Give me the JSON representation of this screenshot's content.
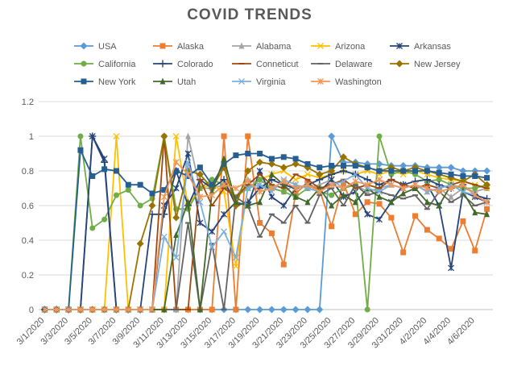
{
  "chart_data": {
    "type": "line",
    "title": "COVID TRENDS",
    "categories": [
      "3/1/2020",
      null,
      "3/3/2020",
      null,
      "3/5/2020",
      null,
      "3/7/2020",
      null,
      "3/9/2020",
      null,
      "3/11/2020",
      null,
      "3/13/2020",
      null,
      "3/15/2020",
      null,
      "3/17/2020",
      null,
      "3/19/2020",
      null,
      "3/21/2020",
      null,
      "3/23/2020",
      null,
      "3/25/2020",
      null,
      "3/27/2020",
      null,
      "3/29/2020",
      null,
      "3/31/2020",
      null,
      "4/2/2020",
      null,
      "4/4/2020",
      null,
      "4/6/2020",
      null
    ],
    "ylim": [
      0,
      1.2
    ],
    "yticks": [
      0,
      0.2,
      0.4,
      0.6,
      0.8,
      1,
      1.2
    ],
    "grid": true,
    "series": [
      {
        "name": "USA",
        "color": "#5b9bd5",
        "marker": "diamond",
        "values": [
          0,
          0,
          0,
          0,
          0,
          0,
          0,
          0,
          0,
          0,
          0,
          0,
          0,
          0,
          0,
          0,
          0,
          0,
          0,
          0,
          0,
          0,
          0,
          0,
          1.0,
          0.85,
          0.85,
          0.84,
          0.84,
          0.83,
          0.83,
          0.83,
          0.82,
          0.82,
          0.82,
          0.8,
          0.8,
          0.8
        ]
      },
      {
        "name": "Alaska",
        "color": "#ed7d31",
        "marker": "square",
        "values": [
          0,
          0,
          0,
          0,
          0,
          0,
          0,
          0,
          0,
          0,
          0,
          0,
          0,
          0,
          0,
          1.0,
          0,
          1.0,
          0.5,
          0.44,
          0.26,
          0.67,
          0.73,
          0.69,
          0.48,
          0.73,
          0.55,
          0.62,
          0.61,
          0.53,
          0.33,
          0.54,
          0.46,
          0.41,
          0.35,
          0.51,
          0.34,
          0.58
        ]
      },
      {
        "name": "Alabama",
        "color": "#a5a5a5",
        "marker": "triangle",
        "values": [
          0,
          0,
          0,
          0,
          0,
          0,
          0,
          0,
          0,
          0,
          0,
          0,
          1.0,
          0.7,
          0.7,
          0.72,
          0.65,
          0.75,
          0.72,
          0.7,
          0.68,
          0.72,
          0.7,
          0.72,
          0.75,
          0.7,
          0.72,
          0.68,
          0.7,
          0.72,
          0.7,
          0.72,
          0.68,
          0.7,
          0.65,
          0.7,
          0.68,
          0.7
        ]
      },
      {
        "name": "Arizona",
        "color": "#ffc000",
        "marker": "x",
        "values": [
          0,
          0,
          0,
          0,
          0,
          0,
          1.0,
          0,
          0,
          0,
          0,
          1.0,
          0.6,
          0.7,
          0.72,
          0.68,
          0.25,
          0.7,
          0.75,
          0.78,
          0.8,
          0.75,
          0.78,
          0.76,
          0.78,
          0.8,
          0.78,
          0.8,
          0.78,
          0.8,
          0.78,
          0.8,
          0.78,
          0.76,
          0.75,
          0.74,
          0.72,
          0.7
        ]
      },
      {
        "name": "Arkansas",
        "color": "#264478",
        "marker": "asterisk",
        "values": [
          0,
          0,
          0,
          0,
          1.0,
          0.87,
          0,
          0,
          0,
          0,
          0.6,
          0.7,
          0.9,
          0.5,
          0.45,
          0.55,
          0.62,
          0.6,
          0.8,
          0.65,
          0.6,
          0.7,
          0.72,
          0.68,
          0.75,
          0.65,
          0.68,
          0.55,
          0.52,
          0.62,
          0.72,
          0.7,
          0.72,
          0.6,
          0.24,
          0.68,
          0.65,
          0.62
        ]
      },
      {
        "name": "California",
        "color": "#70ad47",
        "marker": "circle",
        "values": [
          0,
          0,
          0,
          1.0,
          0.47,
          0.52,
          0.66,
          0.69,
          0.6,
          0.64,
          1.0,
          0.58,
          0.58,
          0.7,
          0.75,
          0.72,
          0.65,
          0.7,
          0.75,
          0.7,
          0.68,
          0.65,
          0.7,
          0.68,
          0.66,
          0.7,
          0.72,
          0,
          1.0,
          0.78,
          0.8,
          0.78,
          0.74,
          0.75,
          0.72,
          0.7,
          0.7,
          0.72
        ]
      },
      {
        "name": "Colorado",
        "color": "#264478",
        "marker": "plus",
        "values": [
          0,
          0,
          0,
          0,
          1.0,
          0.85,
          0,
          0,
          0,
          0.55,
          0.55,
          0.8,
          0.6,
          0.75,
          0.7,
          0.75,
          0.6,
          0.62,
          0.7,
          0.75,
          0.72,
          0.7,
          0.72,
          0.75,
          0.78,
          0.8,
          0.78,
          0.75,
          0.72,
          0.75,
          0.72,
          0.74,
          0.75,
          0.72,
          0.7,
          0.72,
          0.66,
          0.64
        ]
      },
      {
        "name": "Conneticut",
        "color": "#9e480e",
        "marker": "dash",
        "values": [
          0,
          0,
          0,
          0,
          0,
          0,
          0,
          0,
          0,
          0,
          1.0,
          0,
          0,
          0.75,
          0.6,
          0.7,
          0.65,
          0.72,
          0.78,
          0.72,
          0.7,
          0.78,
          0.75,
          0.7,
          0.72,
          0.75,
          0.7,
          0.72,
          0.7,
          0.75,
          0.72,
          0.7,
          0.72,
          0.7,
          0.72,
          0.74,
          0.72,
          0.7
        ]
      },
      {
        "name": "Delaware",
        "color": "#636363",
        "marker": "dash",
        "values": [
          0,
          0,
          0,
          0,
          0,
          0,
          0,
          0,
          0,
          0,
          0,
          0,
          0.5,
          0,
          0.38,
          0,
          0.65,
          0.6,
          0.42,
          0.55,
          0.5,
          0.6,
          0.5,
          0.66,
          0.7,
          0.6,
          0.72,
          0.66,
          0.68,
          0.66,
          0.64,
          0.66,
          0.58,
          0.68,
          0.62,
          0.66,
          0.6,
          0.62
        ]
      },
      {
        "name": "New Jersey",
        "color": "#997300",
        "marker": "diamond",
        "values": [
          0,
          0,
          0,
          0,
          0,
          0,
          0,
          0,
          0.38,
          0.6,
          1.0,
          0.53,
          0.8,
          0.78,
          0.7,
          0.82,
          0.6,
          0.8,
          0.85,
          0.84,
          0.82,
          0.84,
          0.82,
          0.78,
          0.8,
          0.88,
          0.84,
          0.82,
          0.8,
          0.82,
          0.8,
          0.82,
          0.8,
          0.78,
          0.76,
          0.74,
          0.78,
          0.72
        ]
      },
      {
        "name": "New York",
        "color": "#255e91",
        "marker": "square",
        "values": [
          0,
          0,
          0,
          0.92,
          0.77,
          0.81,
          0.8,
          0.72,
          0.72,
          0.67,
          0.69,
          0.8,
          0.77,
          0.82,
          0.72,
          0.84,
          0.89,
          0.9,
          0.9,
          0.87,
          0.88,
          0.87,
          0.84,
          0.82,
          0.83,
          0.83,
          0.83,
          0.82,
          0.8,
          0.8,
          0.8,
          0.8,
          0.8,
          0.79,
          0.78,
          0.77,
          0.77,
          0.76
        ]
      },
      {
        "name": "Utah",
        "color": "#43682b",
        "marker": "triangle",
        "values": [
          0,
          0,
          0,
          0,
          0,
          0,
          0,
          0,
          0,
          0,
          0,
          0.43,
          0.62,
          0,
          0.68,
          0.87,
          0.62,
          0.6,
          0.62,
          0.78,
          0.72,
          0.65,
          0.62,
          0.7,
          0.6,
          0.66,
          0.62,
          0.7,
          0.65,
          0.62,
          0.67,
          0.7,
          0.62,
          0.6,
          0.72,
          0.68,
          0.56,
          0.55
        ]
      },
      {
        "name": "Virginia",
        "color": "#7cafdd",
        "marker": "x",
        "values": [
          0,
          0,
          0,
          0,
          0,
          0,
          0,
          0,
          0,
          0,
          0.42,
          0.3,
          0.85,
          0.62,
          0.36,
          0.45,
          0.3,
          0.7,
          0.72,
          0.68,
          0.75,
          0.72,
          0.7,
          0.68,
          0.72,
          0.74,
          0.78,
          0.7,
          0.68,
          0.72,
          0.7,
          0.72,
          0.68,
          0.7,
          0.72,
          0.68,
          0.66,
          0.62
        ]
      },
      {
        "name": "Washington",
        "color": "#f1975a",
        "marker": "asterisk",
        "values": [
          0,
          0,
          0,
          0,
          0,
          0,
          0,
          0,
          0,
          0,
          0.65,
          0.85,
          0.78,
          0.65,
          0.66,
          0.72,
          0.7,
          0.74,
          0.68,
          0.7,
          0.74,
          0.7,
          0.72,
          0.68,
          0.72,
          0.7,
          0.74,
          0.72,
          0.75,
          0.72,
          0.7,
          0.72,
          0.7,
          0.68,
          0.7,
          0.72,
          0.66,
          0.62
        ]
      }
    ]
  }
}
